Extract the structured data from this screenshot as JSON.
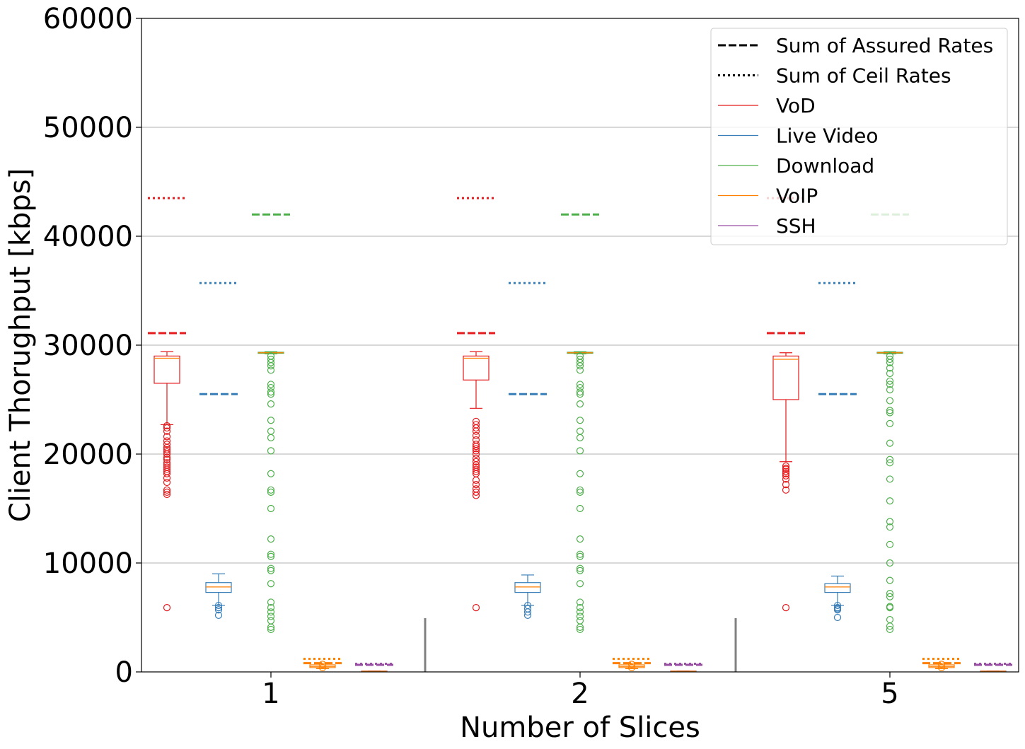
{
  "chart_data": {
    "type": "boxplot",
    "xlabel": "Number of Slices",
    "ylabel": "Client Thorughput [kbps]",
    "ylim": [
      0,
      60000
    ],
    "yticks": [
      0,
      10000,
      20000,
      30000,
      40000,
      50000,
      60000
    ],
    "ytick_labels": [
      "0",
      "10000",
      "20000",
      "30000",
      "40000",
      "50000",
      "60000"
    ],
    "grid": "horizontal",
    "legend_position": "top-right",
    "categories": [
      "1",
      "2",
      "5"
    ],
    "legend": [
      {
        "label": "Sum of Assured Rates",
        "style": "dashed",
        "color": "#000000"
      },
      {
        "label": "Sum of Ceil Rates",
        "style": "dotted",
        "color": "#000000"
      },
      {
        "label": "VoD",
        "style": "solid",
        "color": "#e41a1c"
      },
      {
        "label": "Live Video",
        "style": "solid",
        "color": "#377eb8"
      },
      {
        "label": "Download",
        "style": "solid",
        "color": "#4daf4a"
      },
      {
        "label": "VoIP",
        "style": "solid",
        "color": "#ff7f00"
      },
      {
        "label": "SSH",
        "style": "solid",
        "color": "#984ea3"
      }
    ],
    "series_colors": {
      "VoD": "#e41a1c",
      "Live Video": "#377eb8",
      "Download": "#4daf4a",
      "VoIP": "#ff7f00",
      "SSH": "#984ea3",
      "median": "#ff7f00"
    },
    "groups": [
      {
        "category": "1",
        "boxes": [
          {
            "series": "VoD",
            "whisker_low": 22700,
            "q1": 26500,
            "median": 28800,
            "q3": 29000,
            "whisker_high": 29400,
            "assured": 31100,
            "ceil": 43500,
            "outliers": [
              22600,
              22400,
              22100,
              21600,
              21200,
              20900,
              20600,
              20400,
              20200,
              20000,
              19700,
              19500,
              19200,
              19000,
              18800,
              18600,
              18400,
              18200,
              17800,
              17400,
              16700,
              16500,
              16300,
              5900
            ]
          },
          {
            "series": "Live Video",
            "whisker_low": 6100,
            "q1": 7300,
            "median": 7800,
            "q3": 8200,
            "whisker_high": 9000,
            "assured": 25500,
            "ceil": 35700,
            "outliers": [
              6100,
              5900,
              5700,
              5200
            ]
          },
          {
            "series": "Download",
            "whisker_low": 29200,
            "q1": 29250,
            "median": 29300,
            "q3": 29350,
            "whisker_high": 29400,
            "assured": 42000,
            "ceil": null,
            "outliers": [
              29000,
              28700,
              28400,
              28100,
              27700,
              26400,
              26100,
              25700,
              25500,
              24600,
              23100,
              22100,
              21500,
              20300,
              18200,
              16700,
              16500,
              15000,
              12200,
              10800,
              10600,
              9500,
              9300,
              8100,
              6400,
              5900,
              5500,
              5100,
              4700,
              4100,
              3900
            ]
          },
          {
            "series": "VoIP",
            "whisker_low": 300,
            "q1": 400,
            "median": 500,
            "q3": 650,
            "whisker_high": 800,
            "assured": 800,
            "ceil": 1200,
            "outliers": [
              700,
              400
            ]
          },
          {
            "series": "SSH",
            "whisker_low": 50,
            "q1": 60,
            "median": 70,
            "q3": 80,
            "whisker_high": 90,
            "assured": 650,
            "ceil": 750,
            "outliers": []
          }
        ]
      },
      {
        "category": "2",
        "boxes": [
          {
            "series": "VoD",
            "whisker_low": 24200,
            "q1": 26800,
            "median": 28800,
            "q3": 29000,
            "whisker_high": 29400,
            "assured": 31100,
            "ceil": 43500,
            "outliers": [
              23000,
              22700,
              22400,
              22100,
              21700,
              21300,
              20900,
              20700,
              20500,
              20300,
              20000,
              19600,
              19300,
              19000,
              18800,
              18600,
              18400,
              18200,
              17600,
              17200,
              16800,
              16500,
              16200,
              5900
            ]
          },
          {
            "series": "Live Video",
            "whisker_low": 6100,
            "q1": 7300,
            "median": 7800,
            "q3": 8200,
            "whisker_high": 8900,
            "assured": 25500,
            "ceil": 35700,
            "outliers": [
              6100,
              5800,
              5500,
              5200
            ]
          },
          {
            "series": "Download",
            "whisker_low": 29200,
            "q1": 29250,
            "median": 29300,
            "q3": 29350,
            "whisker_high": 29400,
            "assured": 42000,
            "ceil": null,
            "outliers": [
              29000,
              28700,
              28400,
              28100,
              27700,
              26400,
              26100,
              25700,
              25500,
              24600,
              23100,
              22100,
              21500,
              20300,
              18200,
              16700,
              16500,
              15000,
              12200,
              10800,
              10600,
              9500,
              9300,
              8100,
              6400,
              5900,
              5500,
              5100,
              4700,
              4100,
              3900
            ]
          },
          {
            "series": "VoIP",
            "whisker_low": 300,
            "q1": 400,
            "median": 500,
            "q3": 650,
            "whisker_high": 800,
            "assured": 800,
            "ceil": 1200,
            "outliers": [
              700,
              400
            ]
          },
          {
            "series": "SSH",
            "whisker_low": 50,
            "q1": 60,
            "median": 70,
            "q3": 80,
            "whisker_high": 90,
            "assured": 650,
            "ceil": 750,
            "outliers": []
          }
        ]
      },
      {
        "category": "5",
        "boxes": [
          {
            "series": "VoD",
            "whisker_low": 19300,
            "q1": 25000,
            "median": 28700,
            "q3": 29000,
            "whisker_high": 29300,
            "assured": 31100,
            "ceil": 43500,
            "outliers": [
              18900,
              18700,
              18600,
              18400,
              18200,
              18000,
              17700,
              17200,
              16700,
              5900
            ]
          },
          {
            "series": "Live Video",
            "whisker_low": 6100,
            "q1": 7300,
            "median": 7800,
            "q3": 8100,
            "whisker_high": 8800,
            "assured": 25500,
            "ceil": 35700,
            "outliers": [
              6100,
              5900,
              5800,
              5700,
              5000
            ]
          },
          {
            "series": "Download",
            "whisker_low": 29200,
            "q1": 29250,
            "median": 29300,
            "q3": 29350,
            "whisker_high": 29400,
            "assured": 42000,
            "ceil": null,
            "outliers": [
              29000,
              28700,
              28400,
              27900,
              27400,
              26700,
              26400,
              25900,
              24900,
              24000,
              23800,
              22800,
              21000,
              19500,
              19200,
              17700,
              15700,
              13800,
              13300,
              11700,
              10000,
              8400,
              7200,
              6900,
              6000,
              5900,
              4800,
              4200,
              3900
            ]
          },
          {
            "series": "VoIP",
            "whisker_low": 300,
            "q1": 400,
            "median": 500,
            "q3": 650,
            "whisker_high": 800,
            "assured": 800,
            "ceil": 1200,
            "outliers": [
              700,
              400
            ]
          },
          {
            "series": "SSH",
            "whisker_low": 50,
            "q1": 60,
            "median": 70,
            "q3": 80,
            "whisker_high": 90,
            "assured": 650,
            "ceil": 750,
            "outliers": []
          }
        ]
      }
    ]
  }
}
